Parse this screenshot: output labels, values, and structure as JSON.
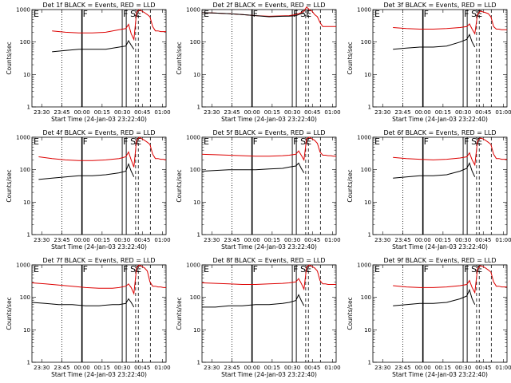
{
  "figure": {
    "panels": [
      {
        "title": "Det 1f BLACK = Events, RED = LLD"
      },
      {
        "title": "Det 2f BLACK = Events, RED = LLD"
      },
      {
        "title": "Det 3f BLACK = Events, RED = LLD"
      },
      {
        "title": "Det 4f BLACK = Events, RED = LLD"
      },
      {
        "title": "Det 5f BLACK = Events, RED = LLD"
      },
      {
        "title": "Det 6f BLACK = Events, RED = LLD"
      },
      {
        "title": "Det 7f BLACK = Events, RED = LLD"
      },
      {
        "title": "Det 8f BLACK = Events, RED = LLD"
      },
      {
        "title": "Det 9f BLACK = Events, RED = LLD"
      }
    ],
    "xlabel": "Start Time (24-Jan-03 23:22:40)",
    "ylabel": "Counts/sec",
    "xticks": [
      "23:30",
      "23:45",
      "00:00",
      "00:15",
      "00:30",
      "00:45",
      "01:00"
    ],
    "yticks": [
      "1",
      "10",
      "100",
      "1000"
    ],
    "flag_labels": [
      "E",
      "F",
      "F",
      "SE"
    ],
    "colors": {
      "events": "#000000",
      "lld": "#dd0000"
    }
  },
  "chart_data": {
    "type": "line",
    "layout": "3x3 small multiples",
    "x_unit": "minutes after 23:22:40",
    "x_range": [
      0,
      100
    ],
    "yscale": "log",
    "ylim": [
      1,
      1000
    ],
    "event_lines_solid": [
      37.3,
      67.3,
      70.3
    ],
    "event_lines_dashed": [
      77.3,
      79.3,
      88.3
    ],
    "event_lines_dotted": [
      22.3
    ],
    "panels": [
      {
        "x": [
          15,
          25,
          35,
          45,
          55,
          65,
          70,
          72,
          74,
          76,
          78,
          80,
          82,
          84,
          86,
          88,
          90,
          92,
          94,
          96,
          98,
          100
        ],
        "lld": [
          220,
          200,
          190,
          190,
          200,
          240,
          260,
          350,
          180,
          120,
          800,
          1000,
          900,
          800,
          700,
          600,
          300,
          220,
          220,
          210,
          210,
          210
        ],
        "events": [
          50,
          55,
          60,
          60,
          60,
          70,
          75,
          110,
          80,
          60,
          null,
          null,
          null,
          null,
          null,
          null,
          null,
          null,
          null,
          null,
          null,
          null
        ]
      },
      {
        "x": [
          0,
          10,
          20,
          30,
          40,
          50,
          60,
          65,
          70,
          72,
          74,
          76,
          78,
          80,
          82,
          84,
          86,
          88,
          90,
          92,
          94,
          96,
          98,
          100
        ],
        "lld": [
          800,
          780,
          750,
          700,
          650,
          620,
          640,
          650,
          700,
          750,
          800,
          900,
          1200,
          1000,
          900,
          700,
          600,
          400,
          300,
          300,
          300,
          300,
          300,
          300
        ],
        "events": [
          800,
          780,
          750,
          700,
          650,
          600,
          620,
          630,
          650,
          700,
          750,
          800,
          null,
          null,
          null,
          null,
          null,
          null,
          null,
          null,
          null,
          null,
          null,
          null
        ]
      },
      {
        "x": [
          15,
          25,
          35,
          45,
          55,
          65,
          70,
          72,
          74,
          76,
          78,
          80,
          82,
          84,
          86,
          88,
          90,
          92,
          94,
          96,
          98,
          100
        ],
        "lld": [
          280,
          260,
          250,
          250,
          260,
          280,
          300,
          360,
          250,
          180,
          700,
          900,
          850,
          800,
          750,
          600,
          300,
          250,
          250,
          240,
          240,
          240
        ],
        "events": [
          60,
          65,
          70,
          70,
          75,
          100,
          120,
          170,
          100,
          70,
          null,
          null,
          null,
          null,
          null,
          null,
          null,
          null,
          null,
          null,
          null,
          null
        ]
      },
      {
        "x": [
          5,
          15,
          25,
          35,
          45,
          55,
          65,
          70,
          72,
          74,
          76,
          78,
          80,
          82,
          84,
          86,
          88,
          90,
          92,
          94,
          96,
          98,
          100
        ],
        "lld": [
          250,
          220,
          200,
          190,
          190,
          200,
          220,
          250,
          350,
          200,
          120,
          800,
          1000,
          900,
          800,
          700,
          600,
          300,
          220,
          220,
          210,
          210,
          200
        ],
        "events": [
          50,
          55,
          60,
          65,
          65,
          70,
          80,
          90,
          150,
          90,
          60,
          null,
          null,
          null,
          null,
          null,
          null,
          null,
          null,
          null,
          null,
          null,
          null
        ]
      },
      {
        "x": [
          0,
          10,
          20,
          30,
          40,
          50,
          60,
          65,
          70,
          72,
          74,
          76,
          78,
          80,
          82,
          84,
          86,
          88,
          90,
          92,
          94,
          96,
          98,
          100
        ],
        "lld": [
          300,
          290,
          280,
          270,
          260,
          260,
          270,
          280,
          300,
          380,
          280,
          200,
          900,
          1000,
          900,
          800,
          650,
          350,
          280,
          280,
          270,
          270,
          260,
          260
        ],
        "events": [
          90,
          95,
          100,
          100,
          100,
          105,
          110,
          120,
          130,
          160,
          110,
          80,
          null,
          null,
          null,
          null,
          null,
          null,
          null,
          null,
          null,
          null,
          null,
          null
        ]
      },
      {
        "x": [
          15,
          25,
          35,
          45,
          55,
          65,
          70,
          72,
          74,
          76,
          78,
          80,
          82,
          84,
          86,
          88,
          90,
          92,
          94,
          96,
          98,
          100
        ],
        "lld": [
          240,
          220,
          210,
          200,
          210,
          230,
          250,
          330,
          200,
          140,
          750,
          950,
          900,
          800,
          700,
          600,
          300,
          220,
          220,
          210,
          210,
          210
        ],
        "events": [
          55,
          60,
          65,
          65,
          70,
          90,
          110,
          160,
          90,
          60,
          null,
          null,
          null,
          null,
          null,
          null,
          null,
          null,
          null,
          null,
          null,
          null
        ]
      },
      {
        "x": [
          0,
          10,
          20,
          30,
          40,
          50,
          60,
          65,
          70,
          72,
          74,
          76,
          78,
          80,
          82,
          84,
          86,
          88,
          90,
          92,
          94,
          96,
          98,
          100
        ],
        "lld": [
          280,
          260,
          240,
          220,
          200,
          190,
          190,
          200,
          220,
          260,
          200,
          130,
          800,
          1000,
          900,
          800,
          650,
          300,
          220,
          220,
          210,
          210,
          200,
          200
        ],
        "events": [
          70,
          65,
          60,
          60,
          55,
          55,
          60,
          60,
          65,
          90,
          70,
          50,
          null,
          null,
          null,
          null,
          null,
          null,
          null,
          null,
          null,
          null,
          null,
          null
        ]
      },
      {
        "x": [
          0,
          10,
          20,
          30,
          40,
          50,
          60,
          65,
          70,
          72,
          74,
          76,
          78,
          80,
          82,
          84,
          86,
          88,
          90,
          92,
          94,
          96,
          98,
          100
        ],
        "lld": [
          280,
          270,
          260,
          250,
          250,
          260,
          270,
          280,
          300,
          380,
          270,
          180,
          850,
          1000,
          900,
          800,
          650,
          330,
          260,
          260,
          250,
          250,
          250,
          250
        ],
        "events": [
          50,
          50,
          55,
          55,
          60,
          60,
          65,
          70,
          80,
          120,
          80,
          55,
          null,
          null,
          null,
          null,
          null,
          null,
          null,
          null,
          null,
          null,
          null,
          null
        ]
      },
      {
        "x": [
          15,
          25,
          35,
          45,
          55,
          65,
          70,
          72,
          74,
          76,
          78,
          80,
          82,
          84,
          86,
          88,
          90,
          92,
          94,
          96,
          98,
          100
        ],
        "lld": [
          230,
          210,
          200,
          200,
          210,
          230,
          250,
          330,
          200,
          140,
          750,
          950,
          900,
          800,
          700,
          600,
          300,
          220,
          220,
          210,
          210,
          210
        ],
        "events": [
          55,
          60,
          65,
          65,
          70,
          90,
          110,
          170,
          90,
          60,
          null,
          null,
          null,
          null,
          null,
          null,
          null,
          null,
          null,
          null,
          null,
          null
        ]
      }
    ]
  }
}
